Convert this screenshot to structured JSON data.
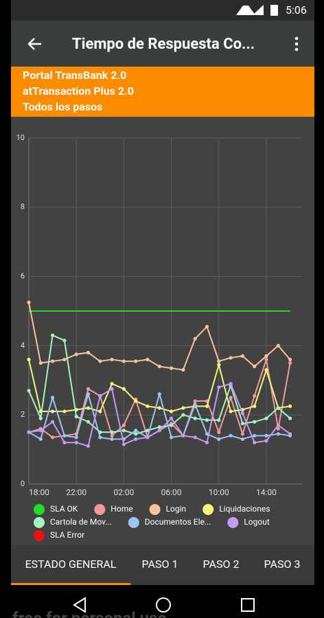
{
  "status_bar": {
    "time": "5:06"
  },
  "app_bar": {
    "title": "Tiempo de Respuesta Co..."
  },
  "banner": {
    "lines": [
      "Portal TransBank 2.0",
      "atTransaction Plus 2.0",
      "Todos los pasos"
    ]
  },
  "chart_data": {
    "type": "line",
    "categories": [
      "18:00",
      null,
      null,
      null,
      "22:00",
      null,
      null,
      null,
      "02:00",
      null,
      null,
      null,
      "06:00",
      null,
      null,
      null,
      "10:00",
      null,
      null,
      null,
      "14:00",
      null,
      null
    ],
    "ylim": [
      0,
      10
    ],
    "yticks": [
      0,
      2,
      4,
      6,
      8,
      10
    ],
    "grid": true,
    "series": [
      {
        "name": "SLA OK",
        "color": "#22dd22",
        "markers": false,
        "values": [
          5,
          5,
          5,
          5,
          5,
          5,
          5,
          5,
          5,
          5,
          5,
          5,
          5,
          5,
          5,
          5,
          5,
          5,
          5,
          5,
          5,
          5,
          5
        ]
      },
      {
        "name": "Home",
        "color": "#f29a9a",
        "values": [
          1.5,
          1.6,
          1.35,
          1.4,
          1.45,
          2.75,
          2.55,
          1.4,
          1.7,
          2.45,
          1.35,
          1.55,
          1.75,
          1.4,
          2.4,
          2.4,
          1.5,
          2.5,
          1.45,
          2.55,
          3.6,
          1.6,
          3.5
        ]
      },
      {
        "name": "Login",
        "color": "#f7c39a",
        "values": [
          5.25,
          3.5,
          3.55,
          3.6,
          3.75,
          3.8,
          3.55,
          3.6,
          3.55,
          3.55,
          3.6,
          3.4,
          3.35,
          3.3,
          4.2,
          4.55,
          3.55,
          3.65,
          3.7,
          3.4,
          3.7,
          4.0,
          3.6
        ]
      },
      {
        "name": "Liquidaciones",
        "color": "#f5f57a",
        "values": [
          3.6,
          2.1,
          2.1,
          2.1,
          2.15,
          2.2,
          2.1,
          2.9,
          2.75,
          2.4,
          2.25,
          2.2,
          2.1,
          2.2,
          2.25,
          2.25,
          3.45,
          2.1,
          2.15,
          2.25,
          3.3,
          2.2,
          2.25
        ]
      },
      {
        "name": "Cartola de Mov...",
        "color": "#a3f5c4",
        "values": [
          2.7,
          1.9,
          4.3,
          4.15,
          1.95,
          1.8,
          1.5,
          1.5,
          1.55,
          1.45,
          1.55,
          1.65,
          1.7,
          2.0,
          1.9,
          1.85,
          1.85,
          2.85,
          1.75,
          1.8,
          1.9,
          2.2,
          1.9
        ]
      },
      {
        "name": "Documentos Ele...",
        "color": "#9cc4f5",
        "values": [
          1.5,
          1.3,
          2.5,
          1.4,
          1.35,
          2.6,
          1.35,
          1.3,
          1.3,
          1.55,
          1.35,
          2.6,
          1.35,
          1.4,
          2.3,
          1.45,
          1.3,
          1.4,
          1.3,
          1.4,
          1.4,
          1.45,
          1.4
        ]
      },
      {
        "name": "Logout",
        "color": "#c49af5",
        "values": [
          1.5,
          1.55,
          1.8,
          1.2,
          1.2,
          1.1,
          2.55,
          2.75,
          1.15,
          1.3,
          1.35,
          1.55,
          1.9,
          1.4,
          1.35,
          1.2,
          2.8,
          2.9,
          2.05,
          1.2,
          1.25,
          1.7,
          1.45
        ]
      },
      {
        "name": "SLA Error",
        "color": "#ee1111",
        "markers": false,
        "values": [
          null,
          null,
          null,
          null,
          null,
          null,
          null,
          null,
          null,
          null,
          null,
          null,
          null,
          null,
          null,
          null,
          null,
          null,
          null,
          null,
          null,
          null,
          null
        ]
      }
    ]
  },
  "tabs": [
    "ESTADO GENERAL",
    "PASO 1",
    "PASO 2",
    "PASO 3"
  ],
  "watermark": "free for personal use"
}
